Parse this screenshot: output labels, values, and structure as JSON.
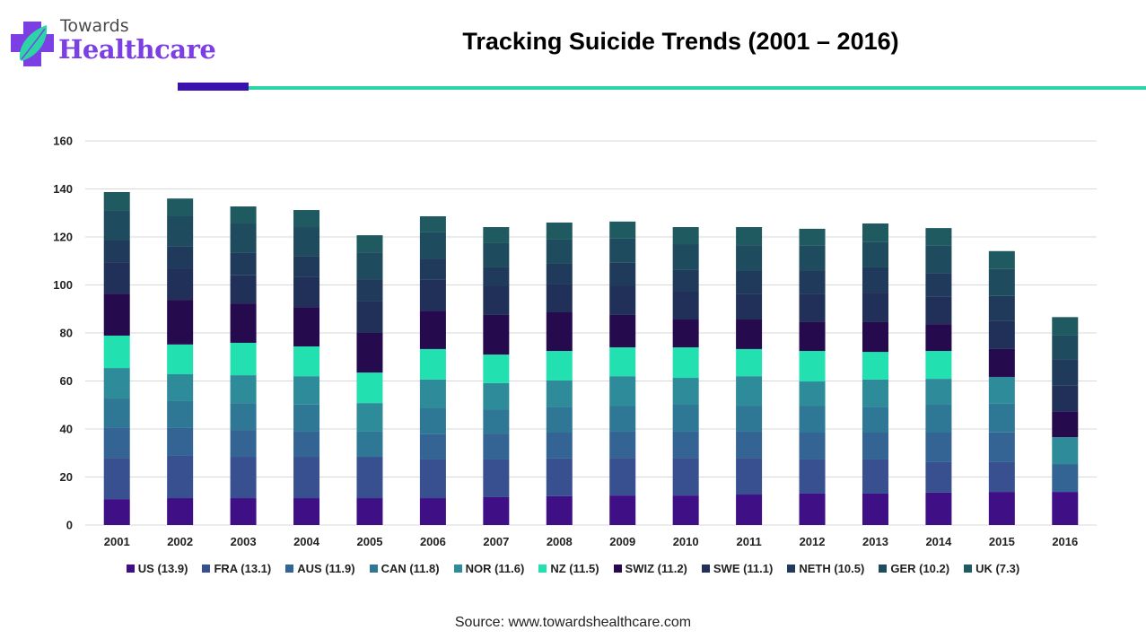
{
  "brand": {
    "line1": "Towards",
    "line2": "Healthcare",
    "accent_purple": "#7b3fe4",
    "accent_green": "#2dd4a8",
    "rule_purple": "#3a12b0"
  },
  "source": "Source: www.towardshealthcare.com",
  "chart_data": {
    "type": "bar",
    "stacked": true,
    "title": "Tracking Suicide Trends (2001 – 2016)",
    "xlabel": "",
    "ylabel": "",
    "ylim": [
      0,
      160
    ],
    "yticks": [
      0,
      20,
      40,
      60,
      80,
      100,
      120,
      140,
      160
    ],
    "grid": true,
    "legend_position": "bottom",
    "categories": [
      "2001",
      "2002",
      "2003",
      "2004",
      "2005",
      "2006",
      "2007",
      "2008",
      "2009",
      "2010",
      "2011",
      "2012",
      "2013",
      "2014",
      "2015",
      "2016"
    ],
    "series": [
      {
        "name": "US (13.9)",
        "color": "#3f0f86",
        "values": [
          10.8,
          11.2,
          11.2,
          11.2,
          11.2,
          11.2,
          11.6,
          12.0,
          12.3,
          12.3,
          12.7,
          13.1,
          13.1,
          13.5,
          13.8,
          13.8
        ]
      },
      {
        "name": "FRA (13.1)",
        "color": "#38508f",
        "values": [
          17.2,
          17.6,
          17.2,
          17.2,
          17.2,
          16.1,
          15.7,
          15.7,
          15.7,
          15.7,
          15.3,
          14.2,
          14.2,
          12.7,
          12.4,
          0
        ]
      },
      {
        "name": "AUS (11.9)",
        "color": "#336494",
        "values": [
          12.7,
          11.6,
          11.2,
          10.5,
          0,
          10.5,
          10.8,
          10.8,
          10.9,
          10.9,
          10.9,
          11.2,
          11.2,
          12.3,
          12.4,
          11.6
        ]
      },
      {
        "name": "CAN (11.8)",
        "color": "#2e7896",
        "values": [
          12.0,
          11.2,
          11.2,
          11.3,
          10.5,
          10.8,
          10.1,
          10.8,
          10.8,
          11.2,
          10.8,
          11.2,
          10.8,
          11.6,
          11.9,
          0
        ]
      },
      {
        "name": "NOR (11.6)",
        "color": "#2e8b9a",
        "values": [
          12.7,
          11.2,
          11.6,
          11.8,
          11.9,
          12.0,
          10.9,
          10.9,
          12.3,
          11.2,
          12.3,
          10.1,
          11.3,
          10.8,
          11.2,
          11.2
        ]
      },
      {
        "name": "NZ (11.5)",
        "color": "#22e0b0",
        "values": [
          13.5,
          12.4,
          13.5,
          12.4,
          12.7,
          12.7,
          11.9,
          12.3,
          12.0,
          12.7,
          11.3,
          12.7,
          11.5,
          11.6,
          0,
          0
        ]
      },
      {
        "name": "SWIZ (11.2)",
        "color": "#250a4e",
        "values": [
          17.5,
          18.6,
          16.4,
          16.4,
          16.5,
          16.0,
          16.5,
          16.1,
          13.5,
          11.6,
          12.3,
          12.0,
          12.4,
          11.2,
          11.6,
          10.8
        ]
      },
      {
        "name": "SWE (11.1)",
        "color": "#203059",
        "values": [
          13.1,
          13.1,
          11.7,
          12.6,
          13.1,
          12.8,
          12.3,
          11.6,
          12.3,
          11.6,
          10.8,
          11.6,
          12.3,
          11.3,
          11.6,
          10.8
        ]
      },
      {
        "name": "NETH (10.5)",
        "color": "#1f3a5a",
        "values": [
          9.0,
          9.3,
          9.3,
          8.7,
          9.3,
          8.9,
          7.5,
          8.6,
          9.4,
          9.0,
          9.4,
          9.7,
          10.5,
          10.0,
          10.5,
          10.8
        ]
      },
      {
        "name": "GER (10.2)",
        "color": "#1f4b5e",
        "values": [
          12.5,
          12.4,
          12.3,
          12.0,
          11.2,
          10.9,
          10.1,
          10.1,
          10.1,
          10.8,
          10.8,
          10.5,
          10.5,
          11.3,
          11.2,
          10.1
        ]
      },
      {
        "name": "UK (7.3)",
        "color": "#1f5a60",
        "values": [
          7.7,
          7.4,
          7.1,
          7.1,
          7.1,
          6.7,
          6.7,
          7.1,
          7.1,
          7.1,
          7.5,
          7.1,
          7.8,
          7.4,
          7.5,
          7.5
        ]
      }
    ]
  }
}
